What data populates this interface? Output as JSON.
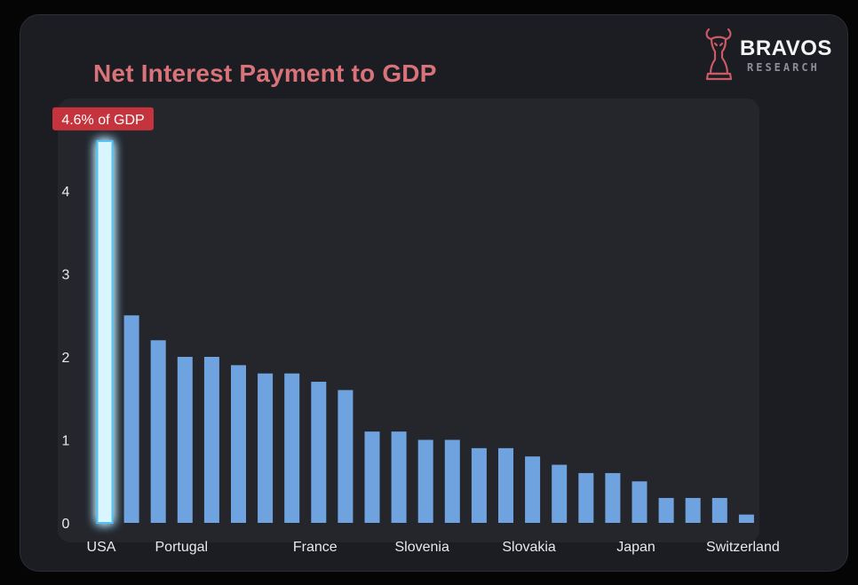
{
  "header": {
    "title": "Net Interest Payment to GDP"
  },
  "logo": {
    "name": "BRAVOS",
    "subtitle": "RESEARCH",
    "icon": "bull-knight-icon"
  },
  "colors": {
    "bar": "#6fa3df",
    "highlight_bar": "#d9f6ff",
    "highlight_glow": "#4fc3f7",
    "callout": "#c5333d",
    "title": "#d9737a",
    "background": "#1b1d22",
    "plot_background": "#24262c"
  },
  "chart_data": {
    "type": "bar",
    "title": "Net Interest Payment to GDP",
    "categories": [
      "USA",
      "",
      "",
      "Portugal",
      "",
      "",
      "",
      "",
      "France",
      "",
      "",
      "",
      "Slovenia",
      "",
      "",
      "",
      "Slovakia",
      "",
      "",
      "",
      "Japan",
      "",
      "",
      "",
      "Switzerland"
    ],
    "values": [
      4.6,
      2.5,
      2.2,
      2.0,
      2.0,
      1.9,
      1.8,
      1.8,
      1.7,
      1.6,
      1.1,
      1.1,
      1.0,
      1.0,
      0.9,
      0.9,
      0.8,
      0.7,
      0.6,
      0.6,
      0.5,
      0.3,
      0.3,
      0.3,
      0.1
    ],
    "yticks": [
      0,
      1,
      2,
      3,
      4
    ],
    "ylim": [
      0,
      4.6
    ],
    "xlabel": "",
    "ylabel": "",
    "grid": false,
    "highlight_index": 0,
    "annotation": "4.6% of GDP"
  }
}
